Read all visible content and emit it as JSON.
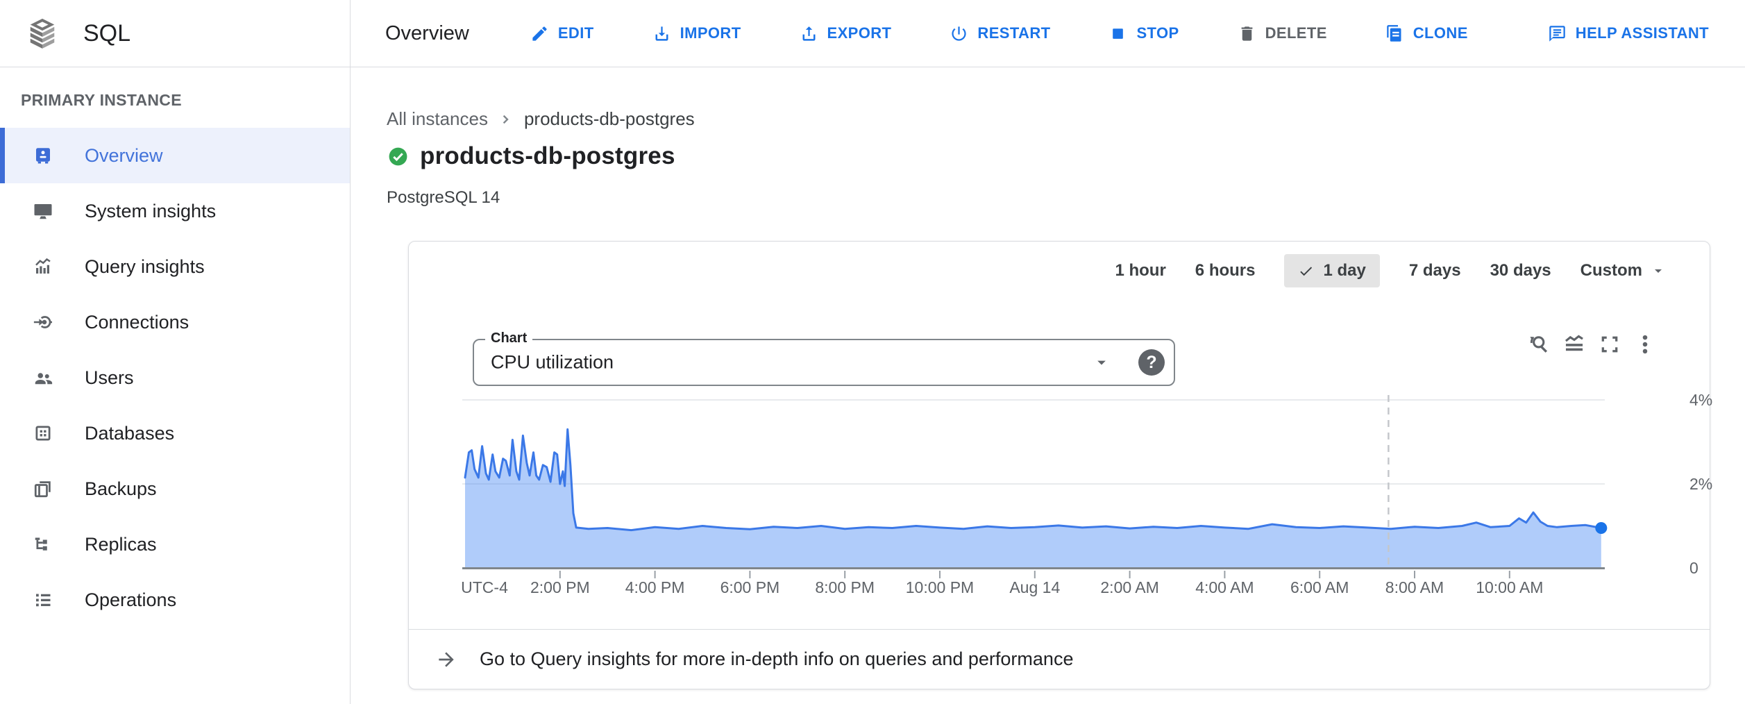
{
  "topbar": {
    "product": "SQL",
    "title": "Overview",
    "actions": [
      {
        "id": "edit",
        "label": "EDIT"
      },
      {
        "id": "import",
        "label": "IMPORT"
      },
      {
        "id": "export",
        "label": "EXPORT"
      },
      {
        "id": "restart",
        "label": "RESTART"
      },
      {
        "id": "stop",
        "label": "STOP"
      },
      {
        "id": "delete",
        "label": "DELETE"
      },
      {
        "id": "clone",
        "label": "CLONE"
      },
      {
        "id": "help-assistant",
        "label": "HELP ASSISTANT"
      }
    ]
  },
  "sidebar": {
    "section": "PRIMARY INSTANCE",
    "items": [
      {
        "label": "Overview",
        "icon": "overview",
        "selected": true
      },
      {
        "label": "System insights",
        "icon": "system-insights",
        "selected": false
      },
      {
        "label": "Query insights",
        "icon": "query-insights",
        "selected": false
      },
      {
        "label": "Connections",
        "icon": "connections",
        "selected": false
      },
      {
        "label": "Users",
        "icon": "users",
        "selected": false
      },
      {
        "label": "Databases",
        "icon": "databases",
        "selected": false
      },
      {
        "label": "Backups",
        "icon": "backups",
        "selected": false
      },
      {
        "label": "Replicas",
        "icon": "replicas",
        "selected": false
      },
      {
        "label": "Operations",
        "icon": "operations",
        "selected": false
      }
    ]
  },
  "content": {
    "breadcrumb": {
      "root": "All instances",
      "current": "products-db-postgres"
    },
    "instance": {
      "name": "products-db-postgres",
      "engine": "PostgreSQL 14"
    },
    "time_ranges": {
      "options": [
        "1 hour",
        "6 hours",
        "1 day",
        "7 days",
        "30 days",
        "Custom"
      ],
      "selected": "1 day"
    },
    "chart_selector": {
      "label": "Chart",
      "value": "CPU utilization"
    },
    "footer_link": "Go to Query insights for more in-depth info on queries and performance"
  },
  "chart_data": {
    "type": "area",
    "title": "CPU utilization",
    "unit": "%",
    "ylim": [
      0,
      4
    ],
    "grid": true,
    "y_ticks": [
      {
        "value": 4,
        "label": "4%"
      },
      {
        "value": 2,
        "label": "2%"
      },
      {
        "value": 0,
        "label": "0"
      }
    ],
    "x_axis_note": "UTC-4",
    "x_range_hours": [
      0,
      24
    ],
    "x_ticks": [
      {
        "hour": 2,
        "label": "2:00 PM"
      },
      {
        "hour": 4,
        "label": "4:00 PM"
      },
      {
        "hour": 6,
        "label": "6:00 PM"
      },
      {
        "hour": 8,
        "label": "8:00 PM"
      },
      {
        "hour": 10,
        "label": "10:00 PM"
      },
      {
        "hour": 12,
        "label": "Aug 14"
      },
      {
        "hour": 14,
        "label": "2:00 AM"
      },
      {
        "hour": 16,
        "label": "4:00 AM"
      },
      {
        "hour": 18,
        "label": "6:00 AM"
      },
      {
        "hour": 20,
        "label": "8:00 AM"
      },
      {
        "hour": 22,
        "label": "10:00 AM"
      }
    ],
    "annotation_line_hour": 19.45,
    "end_marker": true,
    "series": [
      {
        "name": "CPU utilization",
        "points": [
          [
            0,
            2.15
          ],
          [
            0.08,
            2.75
          ],
          [
            0.14,
            2.8
          ],
          [
            0.2,
            2.35
          ],
          [
            0.28,
            2.15
          ],
          [
            0.36,
            2.9
          ],
          [
            0.44,
            2.25
          ],
          [
            0.5,
            2.1
          ],
          [
            0.58,
            2.7
          ],
          [
            0.64,
            2.3
          ],
          [
            0.72,
            2.15
          ],
          [
            0.8,
            2.6
          ],
          [
            0.86,
            2.55
          ],
          [
            0.94,
            2.2
          ],
          [
            1.0,
            3.05
          ],
          [
            1.08,
            2.3
          ],
          [
            1.14,
            2.1
          ],
          [
            1.22,
            3.15
          ],
          [
            1.3,
            2.5
          ],
          [
            1.36,
            2.2
          ],
          [
            1.44,
            2.75
          ],
          [
            1.5,
            2.2
          ],
          [
            1.56,
            2.1
          ],
          [
            1.64,
            2.45
          ],
          [
            1.72,
            2.4
          ],
          [
            1.8,
            2.05
          ],
          [
            1.88,
            2.75
          ],
          [
            1.94,
            2.7
          ],
          [
            2.0,
            2.0
          ],
          [
            2.06,
            2.3
          ],
          [
            2.1,
            1.95
          ],
          [
            2.16,
            3.3
          ],
          [
            2.22,
            2.45
          ],
          [
            2.28,
            1.3
          ],
          [
            2.34,
            0.96
          ],
          [
            2.6,
            0.93
          ],
          [
            3,
            0.95
          ],
          [
            3.5,
            0.9
          ],
          [
            4,
            0.97
          ],
          [
            4.5,
            0.93
          ],
          [
            5,
            1.0
          ],
          [
            5.5,
            0.95
          ],
          [
            6,
            0.92
          ],
          [
            6.5,
            0.98
          ],
          [
            7,
            0.95
          ],
          [
            7.5,
            1.0
          ],
          [
            8,
            0.93
          ],
          [
            8.5,
            0.97
          ],
          [
            9,
            0.95
          ],
          [
            9.5,
            1.0
          ],
          [
            10,
            0.96
          ],
          [
            10.5,
            0.93
          ],
          [
            11,
            0.99
          ],
          [
            11.5,
            0.95
          ],
          [
            12,
            0.97
          ],
          [
            12.5,
            1.01
          ],
          [
            13,
            0.96
          ],
          [
            13.5,
            0.99
          ],
          [
            14,
            0.94
          ],
          [
            14.5,
            0.98
          ],
          [
            15,
            0.95
          ],
          [
            15.5,
            1.0
          ],
          [
            16,
            0.96
          ],
          [
            16.5,
            0.93
          ],
          [
            17,
            1.04
          ],
          [
            17.5,
            0.97
          ],
          [
            18,
            0.95
          ],
          [
            18.5,
            0.99
          ],
          [
            19,
            0.96
          ],
          [
            19.5,
            0.93
          ],
          [
            20,
            0.98
          ],
          [
            20.5,
            0.95
          ],
          [
            21,
            1.0
          ],
          [
            21.3,
            1.08
          ],
          [
            21.6,
            0.97
          ],
          [
            22,
            1.0
          ],
          [
            22.2,
            1.18
          ],
          [
            22.35,
            1.08
          ],
          [
            22.5,
            1.32
          ],
          [
            22.65,
            1.1
          ],
          [
            22.8,
            1.0
          ],
          [
            23,
            0.97
          ],
          [
            23.3,
            1.0
          ],
          [
            23.6,
            1.02
          ],
          [
            23.93,
            0.95
          ]
        ]
      }
    ]
  },
  "colors": {
    "accent": "#1a73e8",
    "selected_nav": "#3d6cd6",
    "status_green": "#34a853",
    "chart_line": "#3b78e7",
    "chart_fill": "rgba(66,133,244,0.42)",
    "grid_line": "#e8eaed",
    "axis_line": "#80868b",
    "tick": "#9aa0a6",
    "dashed_line": "#c4c7cb",
    "axis_label": "#5f6368",
    "end_dot": "#1a73e8"
  }
}
